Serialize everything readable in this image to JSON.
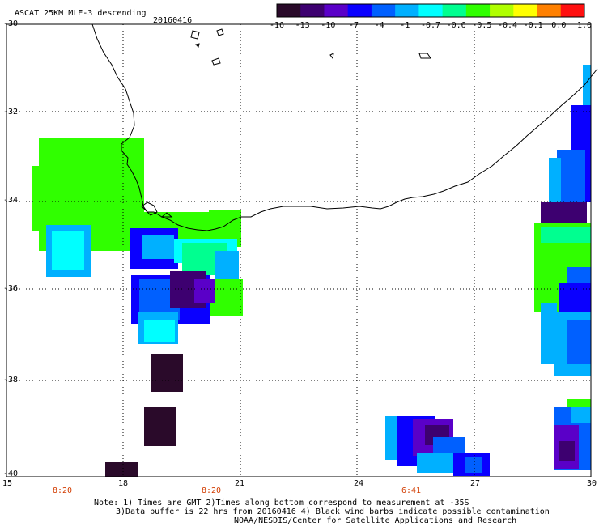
{
  "header": {
    "title": "ASCAT 25KM MLE-3 descending",
    "date": "20160416"
  },
  "colorbar": {
    "labels": [
      "-16",
      "-13",
      "-10",
      "-7",
      "-4",
      "-1",
      "-0.7",
      "-0.6",
      "-0.5",
      "-0.4",
      "-0.1",
      "0.0",
      "1.0"
    ],
    "colors": [
      "#2a0a2a",
      "#3d0070",
      "#5a00c8",
      "#0a00ff",
      "#0060ff",
      "#00b0ff",
      "#00ffff",
      "#00ff90",
      "#30ff00",
      "#b0ff00",
      "#ffff00",
      "#ff8000",
      "#ff1010"
    ]
  },
  "axes": {
    "y_labels": [
      "-30",
      "-32",
      "-34",
      "-36",
      "-38",
      "-40"
    ],
    "x_labels": [
      "15",
      "18",
      "21",
      "24",
      "27",
      "30"
    ],
    "times": [
      "8:20",
      "8:20",
      "6:41"
    ]
  },
  "notes": {
    "line1": "Note: 1) Times are GMT 2)Times along bottom correspond to measurement at -35S",
    "line2": "3)Data buffer is 22 hrs from 20160416 4) Black wind barbs indicate possible contamination",
    "line3": "NOAA/NESDIS/Center for Satellite Applications and Research"
  },
  "map": {
    "lon_range": [
      15,
      30
    ],
    "lat_range": [
      -40,
      -30
    ]
  }
}
